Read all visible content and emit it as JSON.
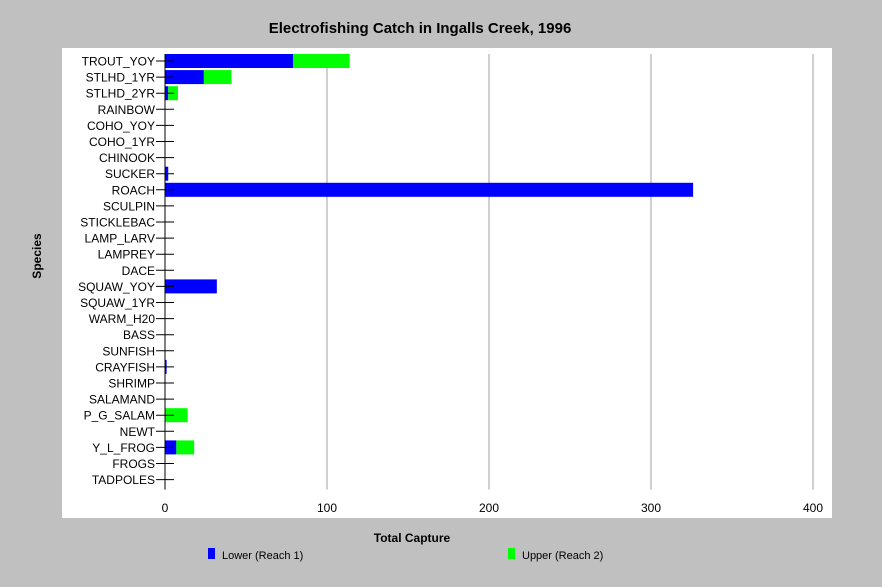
{
  "colors": {
    "background": "#c0c0c0",
    "plot_background": "#ffffff",
    "lower": "#0000ff",
    "upper": "#00ff00",
    "grid": "#a0a0a0"
  },
  "chart_data": {
    "type": "bar",
    "orientation": "horizontal",
    "stacked": true,
    "title": "Electrofishing Catch in Ingalls Creek, 1996",
    "xlabel": "Total Capture",
    "ylabel": "Species",
    "xlim": [
      0,
      400
    ],
    "xticks": [
      0,
      100,
      200,
      300,
      400
    ],
    "grid": "vertical",
    "legend_position": "bottom",
    "categories": [
      "TROUT_YOY",
      "STLHD_1YR",
      "STLHD_2YR",
      "RAINBOW",
      "COHO_YOY",
      "COHO_1YR",
      "CHINOOK",
      "SUCKER",
      "ROACH",
      "SCULPIN",
      "STICKLEBAC",
      "LAMP_LARV",
      "LAMPREY",
      "DACE",
      "SQUAW_YOY",
      "SQUAW_1YR",
      "WARM_H20",
      "BASS",
      "SUNFISH",
      "CRAYFISH",
      "SHRIMP",
      "SALAMAND",
      "P_G_SALAM",
      "NEWT",
      "Y_L_FROG",
      "FROGS",
      "TADPOLES"
    ],
    "series": [
      {
        "name": "Lower (Reach 1)",
        "values": [
          79,
          24,
          2,
          0,
          0,
          0,
          0,
          2,
          326,
          0,
          0,
          0,
          0,
          0,
          32,
          0,
          0,
          0,
          0,
          1,
          0,
          0,
          0,
          0,
          7,
          0,
          0
        ]
      },
      {
        "name": "Upper (Reach 2)",
        "values": [
          35,
          17,
          6,
          0,
          0,
          0,
          0,
          0,
          0,
          0,
          0,
          0,
          0,
          0,
          0,
          0,
          0,
          0,
          0,
          0,
          0,
          0,
          14,
          0,
          11,
          0,
          0
        ]
      }
    ]
  }
}
